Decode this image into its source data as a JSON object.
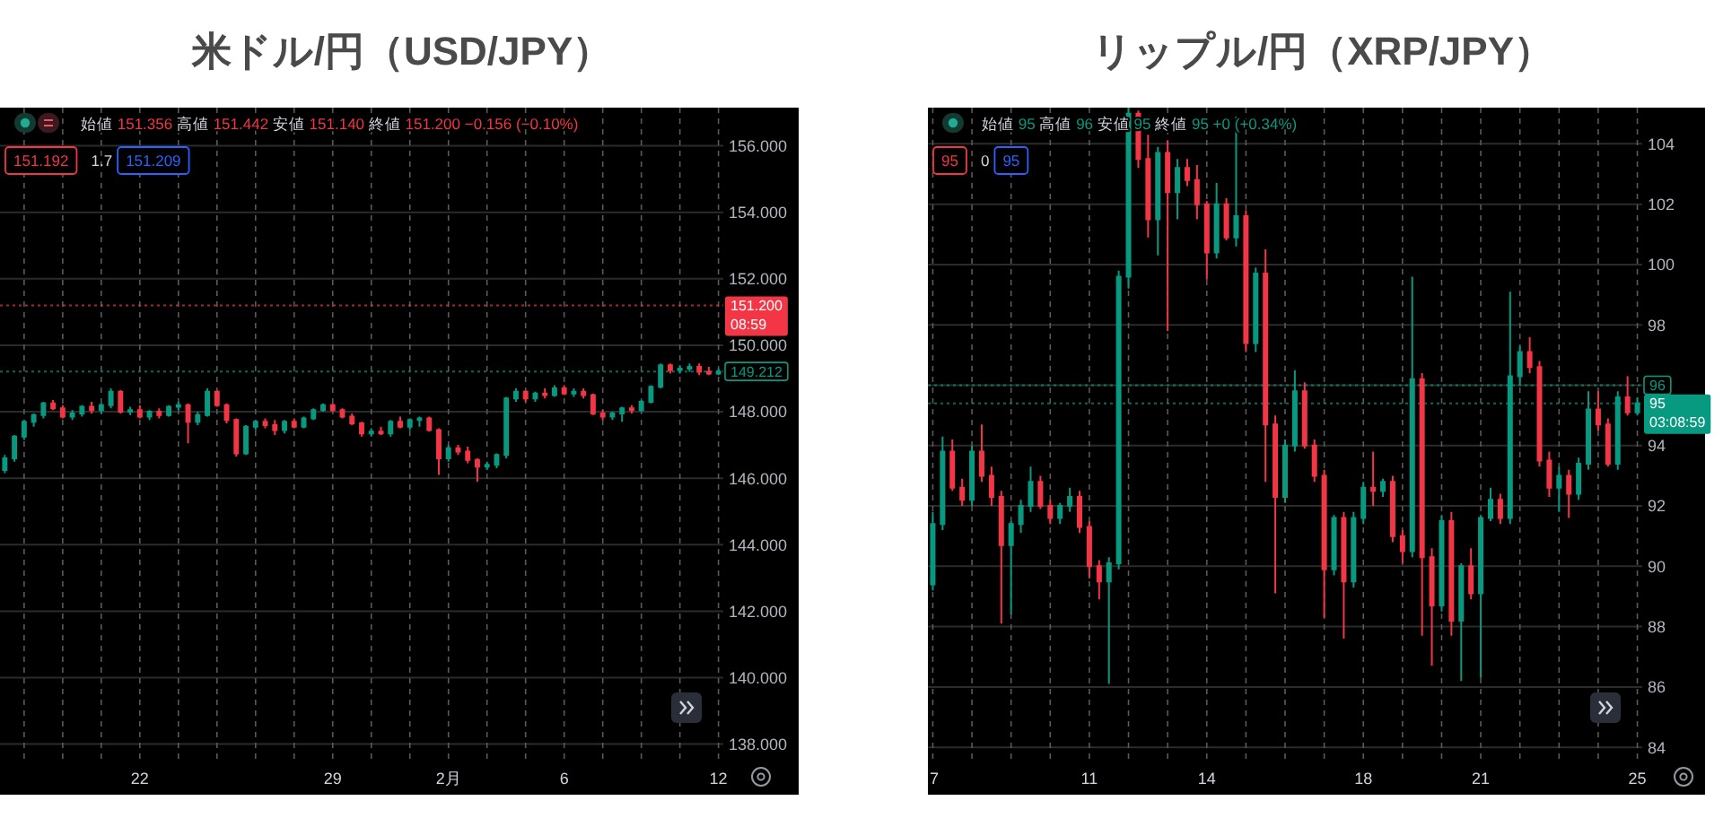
{
  "chart_data": [
    {
      "type": "candlestick",
      "title": "米ドル/円（USD/JPY）",
      "categories": [
        null,
        null,
        null,
        null,
        null,
        null,
        null,
        null,
        null,
        null,
        null,
        null,
        null,
        null,
        "22",
        null,
        null,
        null,
        null,
        null,
        null,
        null,
        null,
        null,
        null,
        null,
        null,
        null,
        null,
        null,
        null,
        null,
        null,
        null,
        "29",
        null,
        null,
        null,
        null,
        null,
        null,
        null,
        null,
        null,
        null,
        null,
        "2月",
        null,
        null,
        null,
        null,
        null,
        null,
        null,
        null,
        null,
        null,
        null,
        "6",
        null,
        null,
        null,
        null,
        null,
        null,
        null,
        null,
        null,
        null,
        null,
        null,
        null,
        null,
        null,
        "12"
      ],
      "ohlc": [
        [
          146.25,
          146.7,
          146.15,
          146.6
        ],
        [
          146.6,
          147.3,
          146.5,
          147.25
        ],
        [
          147.25,
          147.75,
          147.15,
          147.7
        ],
        [
          147.7,
          147.95,
          147.55,
          147.9
        ],
        [
          147.9,
          148.3,
          147.8,
          148.25
        ],
        [
          148.25,
          148.35,
          148.05,
          148.1
        ],
        [
          148.1,
          148.2,
          147.8,
          147.85
        ],
        [
          147.85,
          148.05,
          147.75,
          147.95
        ],
        [
          147.95,
          148.2,
          147.85,
          148.15
        ],
        [
          148.15,
          148.3,
          147.95,
          148.05
        ],
        [
          148.05,
          148.25,
          147.95,
          148.2
        ],
        [
          148.2,
          148.7,
          148.1,
          148.6
        ],
        [
          148.6,
          148.65,
          147.95,
          148.0
        ],
        [
          148.0,
          148.15,
          147.9,
          148.05
        ],
        [
          148.05,
          148.2,
          147.8,
          147.85
        ],
        [
          147.85,
          148.05,
          147.75,
          148.0
        ],
        [
          148.0,
          148.1,
          147.8,
          147.9
        ],
        [
          147.9,
          148.2,
          147.85,
          148.15
        ],
        [
          148.15,
          148.3,
          148.05,
          148.2
        ],
        [
          148.2,
          148.25,
          147.05,
          147.7
        ],
        [
          147.7,
          148.0,
          147.6,
          147.9
        ],
        [
          147.9,
          148.7,
          147.85,
          148.6
        ],
        [
          148.6,
          148.65,
          148.15,
          148.2
        ],
        [
          148.2,
          148.25,
          147.65,
          147.75
        ],
        [
          147.75,
          147.8,
          146.65,
          146.75
        ],
        [
          146.75,
          147.6,
          146.7,
          147.55
        ],
        [
          147.55,
          147.75,
          147.45,
          147.7
        ],
        [
          147.7,
          147.8,
          147.5,
          147.6
        ],
        [
          147.6,
          147.75,
          147.3,
          147.45
        ],
        [
          147.45,
          147.75,
          147.35,
          147.7
        ],
        [
          147.7,
          147.8,
          147.5,
          147.55
        ],
        [
          147.55,
          147.85,
          147.5,
          147.8
        ],
        [
          147.8,
          148.1,
          147.75,
          148.05
        ],
        [
          148.05,
          148.25,
          148.0,
          148.2
        ],
        [
          148.2,
          148.25,
          148.0,
          148.05
        ],
        [
          148.05,
          148.1,
          147.8,
          147.85
        ],
        [
          147.85,
          147.95,
          147.6,
          147.65
        ],
        [
          147.65,
          147.7,
          147.25,
          147.35
        ],
        [
          147.35,
          147.5,
          147.25,
          147.4
        ],
        [
          147.4,
          147.55,
          147.3,
          147.35
        ],
        [
          147.35,
          147.75,
          147.25,
          147.7
        ],
        [
          147.7,
          147.85,
          147.5,
          147.55
        ],
        [
          147.55,
          147.8,
          147.45,
          147.75
        ],
        [
          147.75,
          147.85,
          147.55,
          147.8
        ],
        [
          147.8,
          147.85,
          147.4,
          147.45
        ],
        [
          147.45,
          147.5,
          146.1,
          146.6
        ],
        [
          146.6,
          147.0,
          146.5,
          146.9
        ],
        [
          146.9,
          147.0,
          146.7,
          146.8
        ],
        [
          146.8,
          146.95,
          146.45,
          146.55
        ],
        [
          146.55,
          146.6,
          145.9,
          146.35
        ],
        [
          146.35,
          146.5,
          146.25,
          146.4
        ],
        [
          146.4,
          146.75,
          146.3,
          146.7
        ],
        [
          146.7,
          148.45,
          146.6,
          148.4
        ],
        [
          148.4,
          148.7,
          148.3,
          148.6
        ],
        [
          148.6,
          148.65,
          148.3,
          148.4
        ],
        [
          148.4,
          148.6,
          148.3,
          148.55
        ],
        [
          148.55,
          148.7,
          148.4,
          148.5
        ],
        [
          148.5,
          148.8,
          148.45,
          148.7
        ],
        [
          148.7,
          148.8,
          148.5,
          148.55
        ],
        [
          148.55,
          148.7,
          148.45,
          148.6
        ],
        [
          148.6,
          148.7,
          148.4,
          148.5
        ],
        [
          148.5,
          148.55,
          147.9,
          147.95
        ],
        [
          147.95,
          148.05,
          147.75,
          147.85
        ],
        [
          147.85,
          148.0,
          147.75,
          147.95
        ],
        [
          147.95,
          148.15,
          147.7,
          148.1
        ],
        [
          148.1,
          148.2,
          147.95,
          148.05
        ],
        [
          148.05,
          148.35,
          148.0,
          148.3
        ],
        [
          148.3,
          148.8,
          148.25,
          148.75
        ],
        [
          148.75,
          149.45,
          148.7,
          149.4
        ],
        [
          149.4,
          149.45,
          149.15,
          149.25
        ],
        [
          149.25,
          149.4,
          149.15,
          149.3
        ],
        [
          149.3,
          149.45,
          149.2,
          149.35
        ],
        [
          149.35,
          149.45,
          149.1,
          149.2
        ],
        [
          149.2,
          149.35,
          149.1,
          149.15
        ],
        [
          149.15,
          149.3,
          149.1,
          149.21
        ]
      ],
      "colors": [
        "#089981",
        "#089981",
        "#089981",
        "#089981",
        "#089981",
        "#f23645",
        "#f23645",
        "#089981",
        "#089981",
        "#f23645",
        "#089981",
        "#089981",
        "#f23645",
        "#089981",
        "#f23645",
        "#089981",
        "#f23645",
        "#089981",
        "#089981",
        "#f23645",
        "#089981",
        "#089981",
        "#f23645",
        "#f23645",
        "#f23645",
        "#089981",
        "#089981",
        "#f23645",
        "#f23645",
        "#089981",
        "#f23645",
        "#089981",
        "#089981",
        "#089981",
        "#f23645",
        "#f23645",
        "#f23645",
        "#f23645",
        "#089981",
        "#f23645",
        "#089981",
        "#f23645",
        "#089981",
        "#089981",
        "#f23645",
        "#f23645",
        "#089981",
        "#f23645",
        "#f23645",
        "#f23645",
        "#089981",
        "#089981",
        "#089981",
        "#089981",
        "#f23645",
        "#089981",
        "#f23645",
        "#089981",
        "#f23645",
        "#089981",
        "#f23645",
        "#f23645",
        "#f23645",
        "#089981",
        "#089981",
        "#f23645",
        "#089981",
        "#089981",
        "#089981",
        "#f23645",
        "#089981",
        "#089981",
        "#f23645",
        "#f23645",
        "#089981"
      ],
      "ylim": [
        137.45,
        157.15
      ],
      "yticks": [
        {
          "value": 138,
          "label": "138.000"
        },
        {
          "value": 140,
          "label": "140.000"
        },
        {
          "value": 142,
          "label": "142.000"
        },
        {
          "value": 144,
          "label": "144.000"
        },
        {
          "value": 146,
          "label": "146.000"
        },
        {
          "value": 148,
          "label": "148.000"
        },
        {
          "value": 150,
          "label": "150.000"
        },
        {
          "value": 152,
          "label": "152.000"
        },
        {
          "value": 154,
          "label": "154.000"
        },
        {
          "value": 156,
          "label": "156.000"
        }
      ],
      "grid": true,
      "ref_lines": [
        {
          "axis": "y",
          "value": 151.2,
          "label": "151.200\n08:59",
          "color": "#f23645",
          "line_style": "dotted"
        },
        {
          "axis": "y",
          "value": 149.212,
          "label": "149.212",
          "color": "#089981",
          "line_style": "dotted"
        }
      ],
      "annotations": [
        "始値 151.356 高値 151.442 安値 151.140 終値 151.200 −0.156 (−0.10%)",
        "151.192",
        "1.7",
        "151.209"
      ]
    },
    {
      "type": "candlestick",
      "title": "リップル/円（XRP/JPY）",
      "categories": [
        "7",
        null,
        null,
        null,
        null,
        null,
        null,
        null,
        null,
        null,
        null,
        null,
        null,
        null,
        null,
        null,
        "11",
        null,
        null,
        null,
        null,
        null,
        null,
        null,
        null,
        null,
        null,
        null,
        "14",
        null,
        null,
        null,
        null,
        null,
        null,
        null,
        null,
        null,
        null,
        null,
        null,
        null,
        null,
        null,
        "18",
        null,
        null,
        null,
        null,
        null,
        null,
        null,
        null,
        null,
        null,
        null,
        "21",
        null,
        null,
        null,
        null,
        null,
        null,
        null,
        null,
        null,
        null,
        null,
        null,
        null,
        null,
        null,
        "25"
      ],
      "ohlc": [
        [
          89.4,
          91.8,
          89.2,
          91.4
        ],
        [
          91.4,
          94.3,
          91.2,
          93.8
        ],
        [
          93.8,
          94.2,
          92.5,
          92.6
        ],
        [
          92.6,
          92.9,
          92.0,
          92.2
        ],
        [
          92.2,
          94.0,
          92.0,
          93.8
        ],
        [
          93.8,
          94.7,
          92.8,
          93.0
        ],
        [
          93.0,
          93.3,
          92.0,
          92.3
        ],
        [
          92.3,
          92.5,
          88.1,
          90.7
        ],
        [
          90.7,
          91.5,
          88.4,
          91.4
        ],
        [
          91.4,
          92.2,
          91.1,
          92.0
        ],
        [
          92.0,
          93.3,
          91.8,
          92.8
        ],
        [
          92.8,
          93.0,
          91.9,
          92.0
        ],
        [
          92.0,
          92.2,
          91.4,
          91.6
        ],
        [
          91.6,
          92.1,
          91.4,
          92.0
        ],
        [
          92.0,
          92.6,
          91.8,
          92.3
        ],
        [
          92.3,
          92.5,
          91.1,
          91.3
        ],
        [
          91.3,
          91.5,
          89.6,
          90.0
        ],
        [
          90.0,
          90.2,
          88.9,
          89.5
        ],
        [
          89.5,
          90.3,
          86.1,
          90.1
        ],
        [
          90.1,
          99.8,
          89.9,
          99.6
        ],
        [
          99.6,
          105.2,
          99.2,
          105.0
        ],
        [
          105.0,
          105.1,
          103.2,
          103.5
        ],
        [
          103.5,
          104.3,
          100.9,
          101.5
        ],
        [
          101.5,
          103.9,
          100.3,
          103.7
        ],
        [
          103.7,
          104.1,
          97.8,
          102.4
        ],
        [
          102.4,
          103.5,
          101.5,
          103.2
        ],
        [
          103.2,
          103.5,
          102.6,
          102.8
        ],
        [
          102.8,
          103.3,
          101.5,
          102.0
        ],
        [
          102.0,
          102.1,
          99.5,
          100.4
        ],
        [
          100.4,
          102.7,
          100.2,
          102.0
        ],
        [
          102.0,
          102.2,
          100.8,
          100.9
        ],
        [
          100.9,
          104.9,
          100.6,
          101.6
        ],
        [
          101.6,
          101.8,
          97.1,
          97.4
        ],
        [
          97.4,
          99.9,
          97.1,
          99.7
        ],
        [
          99.7,
          100.5,
          92.8,
          94.7
        ],
        [
          94.7,
          95.0,
          89.1,
          92.3
        ],
        [
          92.3,
          94.2,
          92.1,
          94.0
        ],
        [
          94.0,
          96.5,
          93.8,
          95.8
        ],
        [
          95.8,
          96.1,
          93.9,
          94.0
        ],
        [
          94.0,
          94.2,
          92.8,
          93.0
        ],
        [
          93.0,
          93.2,
          88.3,
          89.9
        ],
        [
          89.9,
          91.7,
          89.7,
          91.6
        ],
        [
          91.6,
          91.8,
          87.6,
          89.5
        ],
        [
          89.5,
          91.8,
          89.3,
          91.6
        ],
        [
          91.6,
          92.8,
          91.4,
          92.6
        ],
        [
          92.6,
          93.8,
          92.0,
          92.5
        ],
        [
          92.5,
          92.9,
          92.3,
          92.8
        ],
        [
          92.8,
          93.0,
          90.8,
          91.0
        ],
        [
          91.0,
          91.2,
          90.1,
          90.5
        ],
        [
          90.5,
          99.6,
          90.3,
          96.2
        ],
        [
          96.2,
          96.4,
          87.7,
          90.3
        ],
        [
          90.3,
          90.6,
          86.7,
          88.7
        ],
        [
          88.7,
          91.7,
          88.5,
          91.5
        ],
        [
          91.5,
          91.8,
          87.7,
          88.2
        ],
        [
          88.2,
          90.1,
          86.2,
          90.0
        ],
        [
          90.0,
          90.6,
          88.9,
          89.1
        ],
        [
          89.1,
          91.7,
          86.3,
          91.6
        ],
        [
          91.6,
          92.6,
          91.5,
          92.2
        ],
        [
          92.2,
          92.4,
          91.4,
          91.6
        ],
        [
          91.6,
          99.1,
          91.4,
          96.3
        ],
        [
          96.3,
          97.3,
          96.0,
          97.1
        ],
        [
          97.1,
          97.6,
          96.4,
          96.6
        ],
        [
          96.6,
          96.8,
          93.3,
          93.5
        ],
        [
          93.5,
          93.8,
          92.3,
          92.6
        ],
        [
          92.6,
          93.3,
          91.8,
          93.0
        ],
        [
          93.0,
          93.2,
          91.6,
          92.4
        ],
        [
          92.4,
          93.6,
          92.2,
          93.4
        ],
        [
          93.4,
          95.8,
          93.2,
          95.2
        ],
        [
          95.2,
          95.8,
          94.5,
          94.7
        ],
        [
          94.7,
          94.9,
          93.3,
          93.4
        ],
        [
          93.4,
          95.8,
          93.2,
          95.6
        ],
        [
          95.6,
          96.3,
          95.0,
          95.1
        ],
        [
          95.1,
          95.6,
          95.0,
          95.4
        ]
      ],
      "colors": [
        "#089981",
        "#089981",
        "#f23645",
        "#f23645",
        "#089981",
        "#f23645",
        "#f23645",
        "#f23645",
        "#089981",
        "#089981",
        "#089981",
        "#f23645",
        "#f23645",
        "#089981",
        "#089981",
        "#f23645",
        "#f23645",
        "#f23645",
        "#089981",
        "#089981",
        "#089981",
        "#f23645",
        "#f23645",
        "#089981",
        "#f23645",
        "#089981",
        "#f23645",
        "#f23645",
        "#f23645",
        "#089981",
        "#f23645",
        "#089981",
        "#f23645",
        "#089981",
        "#f23645",
        "#f23645",
        "#089981",
        "#089981",
        "#f23645",
        "#f23645",
        "#f23645",
        "#089981",
        "#f23645",
        "#089981",
        "#089981",
        "#f23645",
        "#089981",
        "#f23645",
        "#f23645",
        "#089981",
        "#f23645",
        "#f23645",
        "#089981",
        "#f23645",
        "#089981",
        "#f23645",
        "#089981",
        "#089981",
        "#f23645",
        "#089981",
        "#089981",
        "#f23645",
        "#f23645",
        "#f23645",
        "#089981",
        "#f23645",
        "#089981",
        "#089981",
        "#f23645",
        "#f23645",
        "#089981",
        "#f23645",
        "#089981"
      ],
      "ylim": [
        83.5,
        105.2
      ],
      "yticks": [
        84,
        86,
        88,
        90,
        92,
        94,
        {
          "value": 96,
          "label": null
        },
        98,
        100,
        102,
        104
      ],
      "grid": true,
      "ref_lines": [
        {
          "axis": "y",
          "value": 95.4,
          "label": "95\n03:08:59",
          "color": "#089981",
          "line_style": "dotted"
        },
        {
          "axis": "y",
          "value": 96,
          "label": "96",
          "color": "#089981",
          "line_style": "dotted"
        }
      ],
      "annotations": [
        "始値 95 高値 96 安値 95 終値 95 +0 (+0.34%)",
        "95",
        "0",
        "95"
      ]
    }
  ]
}
